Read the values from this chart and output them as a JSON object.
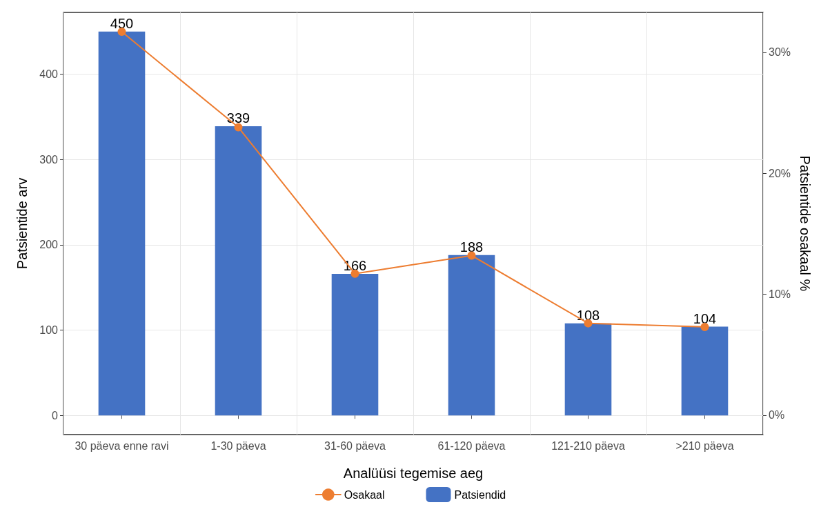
{
  "chart_data": {
    "type": "bar",
    "xlabel": "Analüüsi tegemise aeg",
    "ylabel": "Patsientide arv",
    "y2label": "Patsientide osakaal %",
    "categories": [
      "30 päeva enne ravi",
      "1-30 päeva",
      "31-60 päeva",
      "61-120 päeva",
      "121-210 päeva",
      ">210 päeva"
    ],
    "series": [
      {
        "name": "Patsiendid",
        "color": "#4472c4",
        "values": [
          450,
          339,
          166,
          188,
          108,
          104
        ],
        "value_labels": [
          "450",
          "339",
          "166",
          "188",
          "108",
          "104"
        ]
      },
      {
        "name": "Osakaal",
        "type": "line",
        "axis": "y2",
        "color": "#ed7d31",
        "values": [
          31.7,
          23.8,
          11.7,
          13.2,
          7.6,
          7.3
        ]
      }
    ],
    "ylim": [
      -22.5,
      472.5
    ],
    "yticks": [
      0,
      100,
      200,
      300,
      400
    ],
    "y2lim": [
      -1.6,
      33.3
    ],
    "y2ticks": [
      {
        "value": 0,
        "label": "0%"
      },
      {
        "value": 10,
        "label": "10%"
      },
      {
        "value": 20,
        "label": "20%"
      },
      {
        "value": 30,
        "label": "30%"
      }
    ],
    "grid": true,
    "legend": "bottom",
    "marker": "circle",
    "line_style": "solid"
  }
}
